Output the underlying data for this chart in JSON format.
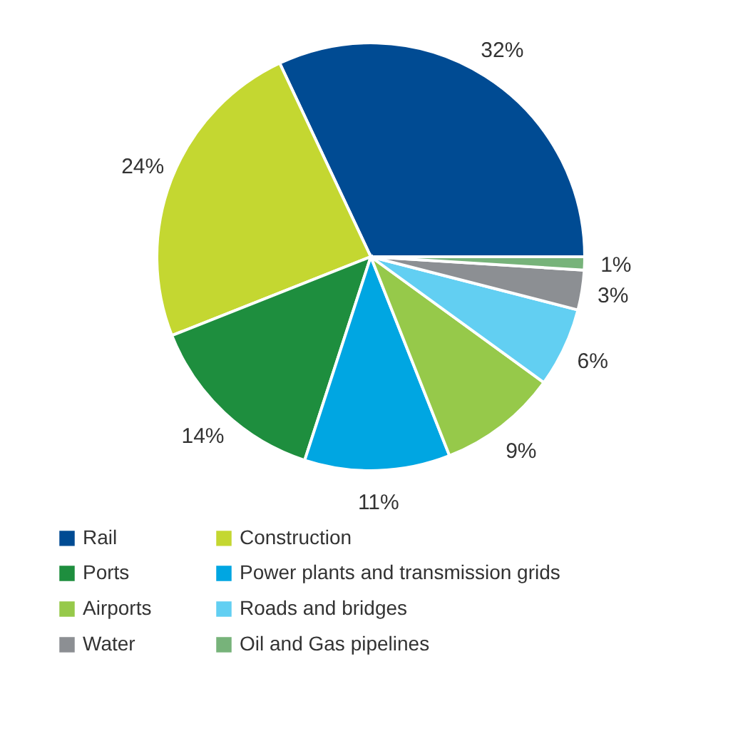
{
  "chart_data": {
    "type": "pie",
    "categories": [
      "Rail",
      "Construction",
      "Ports",
      "Power plants and transmission grids",
      "Airports",
      "Roads and bridges",
      "Water",
      "Oil and Gas pipelines"
    ],
    "values": [
      32,
      24,
      14,
      11,
      9,
      6,
      3,
      1
    ],
    "colors": [
      "#004b93",
      "#c4d731",
      "#1e8e3e",
      "#00a6e2",
      "#96c94a",
      "#62cff2",
      "#8c8f93",
      "#77b37a"
    ],
    "value_labels": [
      "32%",
      "24%",
      "14%",
      "11%",
      "9%",
      "6%",
      "3%",
      "1%"
    ],
    "legend": "bottom"
  }
}
